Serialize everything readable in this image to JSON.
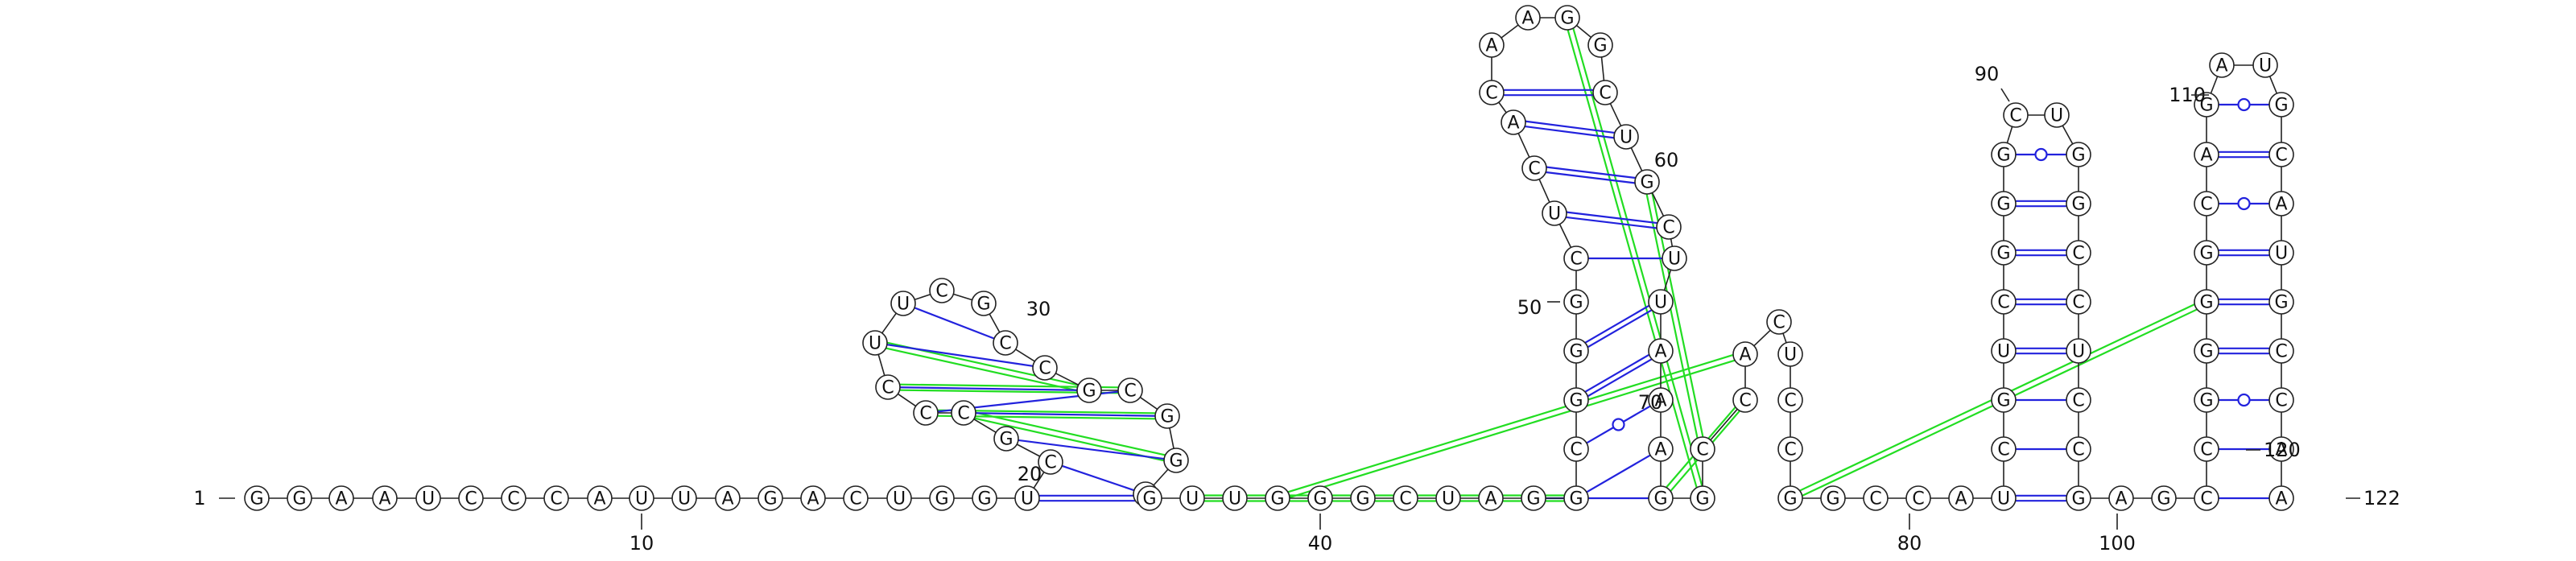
{
  "sequence": "GGAAUCCCAUUAGACUGGUCGCCCUUCGCCGCGGAGUUGGGCUAGGCGGGCUCACAAGGCUGCUUAAAGGCCACUCCGGCCAUCGUCGGGCUGGCCUCCGAGCCGGGGCAGAUGCAUGCCAAUC",
  "labels": {
    "n1": "1",
    "n10": "10",
    "n20": "20",
    "n30": "30",
    "n40": "40",
    "n50": "50",
    "n60": "60",
    "n70": "70",
    "n80": "80",
    "n90": "90",
    "n100": "100",
    "n110": "110",
    "n120": "120",
    "n122": "122"
  },
  "colors": {
    "canonical_pair": "#2222dd",
    "pseudoknot_pair": "#22dd22",
    "backbone": "#222222"
  }
}
